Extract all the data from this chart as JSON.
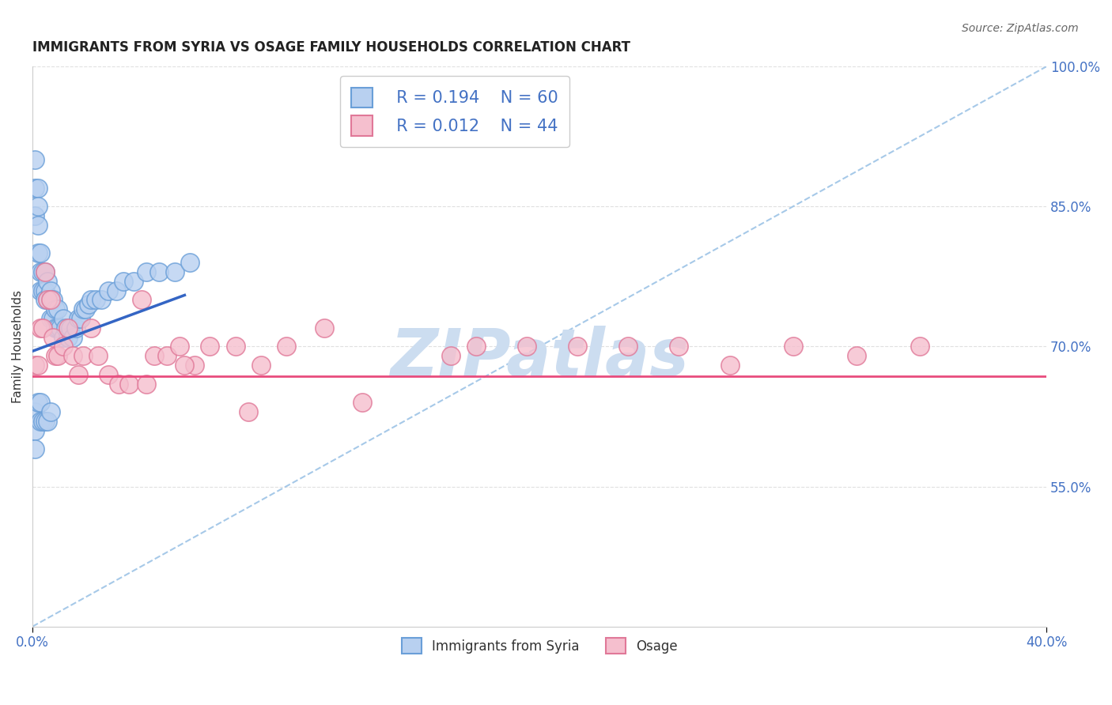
{
  "title": "IMMIGRANTS FROM SYRIA VS OSAGE FAMILY HOUSEHOLDS CORRELATION CHART",
  "source_text": "Source: ZipAtlas.com",
  "ylabel": "Family Households",
  "xlim": [
    0.0,
    0.4
  ],
  "ylim": [
    0.4,
    1.0
  ],
  "ytick_vals": [
    0.55,
    0.7,
    0.85,
    1.0
  ],
  "ytick_labels": [
    "55.0%",
    "70.0%",
    "85.0%",
    "100.0%"
  ],
  "xtick_vals": [
    0.0,
    0.4
  ],
  "xtick_labels": [
    "0.0%",
    "40.0%"
  ],
  "syria_face_color": "#b8d0f0",
  "syria_edge_color": "#6a9fd8",
  "osage_face_color": "#f5bfce",
  "osage_edge_color": "#e07898",
  "regression_syria_color": "#3465C4",
  "regression_syria_x0": 0.0,
  "regression_syria_y0": 0.695,
  "regression_syria_x1": 0.06,
  "regression_syria_y1": 0.755,
  "regression_osage_color": "#E84C7D",
  "regression_osage_y": 0.668,
  "diagonal_color": "#9DC3E6",
  "watermark_text": "ZIPatlas",
  "watermark_color": "#ccddf0",
  "bg_color": "#ffffff",
  "grid_color": "#e0e0e0",
  "tick_color": "#4472C4",
  "title_fontsize": 12,
  "ylabel_fontsize": 11,
  "legend_label_syria": "Immigrants from Syria",
  "legend_label_osage": "Osage",
  "legend_R_syria": "0.194",
  "legend_N_syria": "60",
  "legend_R_osage": "0.012",
  "legend_N_osage": "44",
  "syria_x": [
    0.001,
    0.001,
    0.001,
    0.002,
    0.002,
    0.002,
    0.002,
    0.003,
    0.003,
    0.003,
    0.004,
    0.004,
    0.005,
    0.005,
    0.005,
    0.006,
    0.006,
    0.007,
    0.007,
    0.007,
    0.008,
    0.008,
    0.009,
    0.009,
    0.01,
    0.01,
    0.011,
    0.012,
    0.012,
    0.013,
    0.014,
    0.015,
    0.016,
    0.017,
    0.018,
    0.019,
    0.02,
    0.021,
    0.022,
    0.023,
    0.025,
    0.027,
    0.03,
    0.033,
    0.036,
    0.04,
    0.045,
    0.05,
    0.056,
    0.062,
    0.001,
    0.001,
    0.001,
    0.002,
    0.003,
    0.003,
    0.004,
    0.005,
    0.006,
    0.007
  ],
  "syria_y": [
    0.9,
    0.87,
    0.84,
    0.87,
    0.85,
    0.83,
    0.8,
    0.8,
    0.78,
    0.76,
    0.78,
    0.76,
    0.78,
    0.76,
    0.75,
    0.77,
    0.75,
    0.76,
    0.75,
    0.73,
    0.75,
    0.73,
    0.74,
    0.72,
    0.74,
    0.72,
    0.72,
    0.73,
    0.71,
    0.72,
    0.71,
    0.72,
    0.71,
    0.72,
    0.73,
    0.73,
    0.74,
    0.74,
    0.745,
    0.75,
    0.75,
    0.75,
    0.76,
    0.76,
    0.77,
    0.77,
    0.78,
    0.78,
    0.78,
    0.79,
    0.63,
    0.61,
    0.59,
    0.64,
    0.64,
    0.62,
    0.62,
    0.62,
    0.62,
    0.63
  ],
  "osage_x": [
    0.001,
    0.002,
    0.003,
    0.004,
    0.005,
    0.006,
    0.007,
    0.008,
    0.009,
    0.01,
    0.012,
    0.014,
    0.016,
    0.018,
    0.02,
    0.023,
    0.026,
    0.03,
    0.034,
    0.038,
    0.043,
    0.048,
    0.053,
    0.058,
    0.064,
    0.07,
    0.08,
    0.09,
    0.1,
    0.115,
    0.165,
    0.195,
    0.215,
    0.235,
    0.255,
    0.275,
    0.3,
    0.325,
    0.35,
    0.175,
    0.045,
    0.06,
    0.085,
    0.13
  ],
  "osage_y": [
    0.68,
    0.68,
    0.72,
    0.72,
    0.78,
    0.75,
    0.75,
    0.71,
    0.69,
    0.69,
    0.7,
    0.72,
    0.69,
    0.67,
    0.69,
    0.72,
    0.69,
    0.67,
    0.66,
    0.66,
    0.75,
    0.69,
    0.69,
    0.7,
    0.68,
    0.7,
    0.7,
    0.68,
    0.7,
    0.72,
    0.69,
    0.7,
    0.7,
    0.7,
    0.7,
    0.68,
    0.7,
    0.69,
    0.7,
    0.7,
    0.66,
    0.68,
    0.63,
    0.64
  ]
}
